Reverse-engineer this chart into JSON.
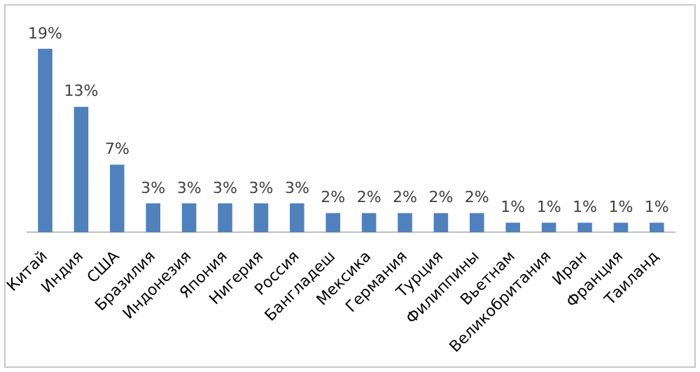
{
  "chart_data": {
    "type": "bar",
    "categories": [
      "Китай",
      "Индия",
      "США",
      "Бразилия",
      "Индонезия",
      "Япония",
      "Нигерия",
      "Россия",
      "Бангладеш",
      "Мексика",
      "Германия",
      "Турция",
      "Филиппины",
      "Вьетнам",
      "Великобритания",
      "Иран",
      "Франция",
      "Таиланд"
    ],
    "values": [
      19,
      13,
      7,
      3,
      3,
      3,
      3,
      3,
      2,
      2,
      2,
      2,
      2,
      1,
      1,
      1,
      1,
      1
    ],
    "value_labels": [
      "19%",
      "13%",
      "7%",
      "3%",
      "3%",
      "3%",
      "3%",
      "3%",
      "2%",
      "2%",
      "2%",
      "2%",
      "2%",
      "1%",
      "1%",
      "1%",
      "1%",
      "1%"
    ],
    "color": "#4f81bd",
    "tick_labels": "x",
    "grid": false,
    "legend": false
  }
}
